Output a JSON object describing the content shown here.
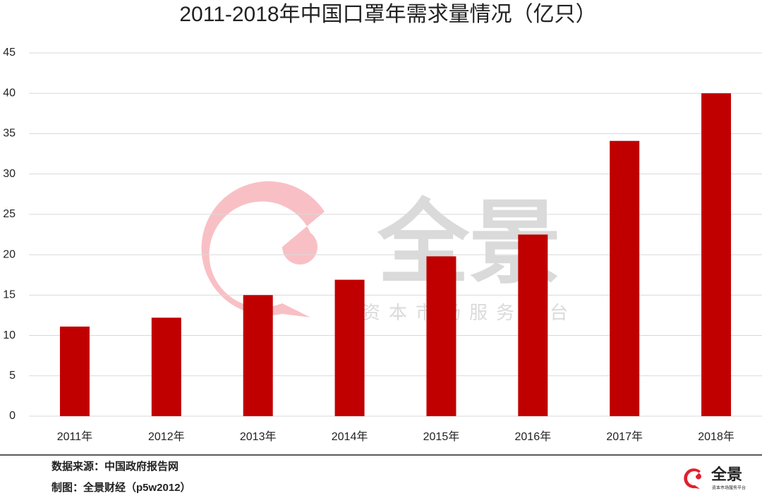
{
  "chart_data": {
    "type": "bar",
    "title": "2011-2018年中国口罩年需求量情况（亿只）",
    "categories": [
      "2011年",
      "2012年",
      "2013年",
      "2014年",
      "2015年",
      "2016年",
      "2017年",
      "2018年"
    ],
    "values": [
      11.1,
      12.2,
      15.0,
      16.9,
      19.8,
      22.5,
      34.1,
      40.0
    ],
    "color": "#c00000",
    "ylim": [
      0,
      45
    ],
    "yticks": [
      0,
      5,
      10,
      15,
      20,
      25,
      30,
      35,
      40,
      45
    ],
    "grid": true
  },
  "watermark": {
    "brand": "全景",
    "slogan": "资本市场服务平台"
  },
  "footer": {
    "source": "数据来源：中国政府报告网",
    "credit": "制图：全景财经（p5w2012）",
    "logo": "全景",
    "logo_slogan": "资本市场服务平台"
  }
}
